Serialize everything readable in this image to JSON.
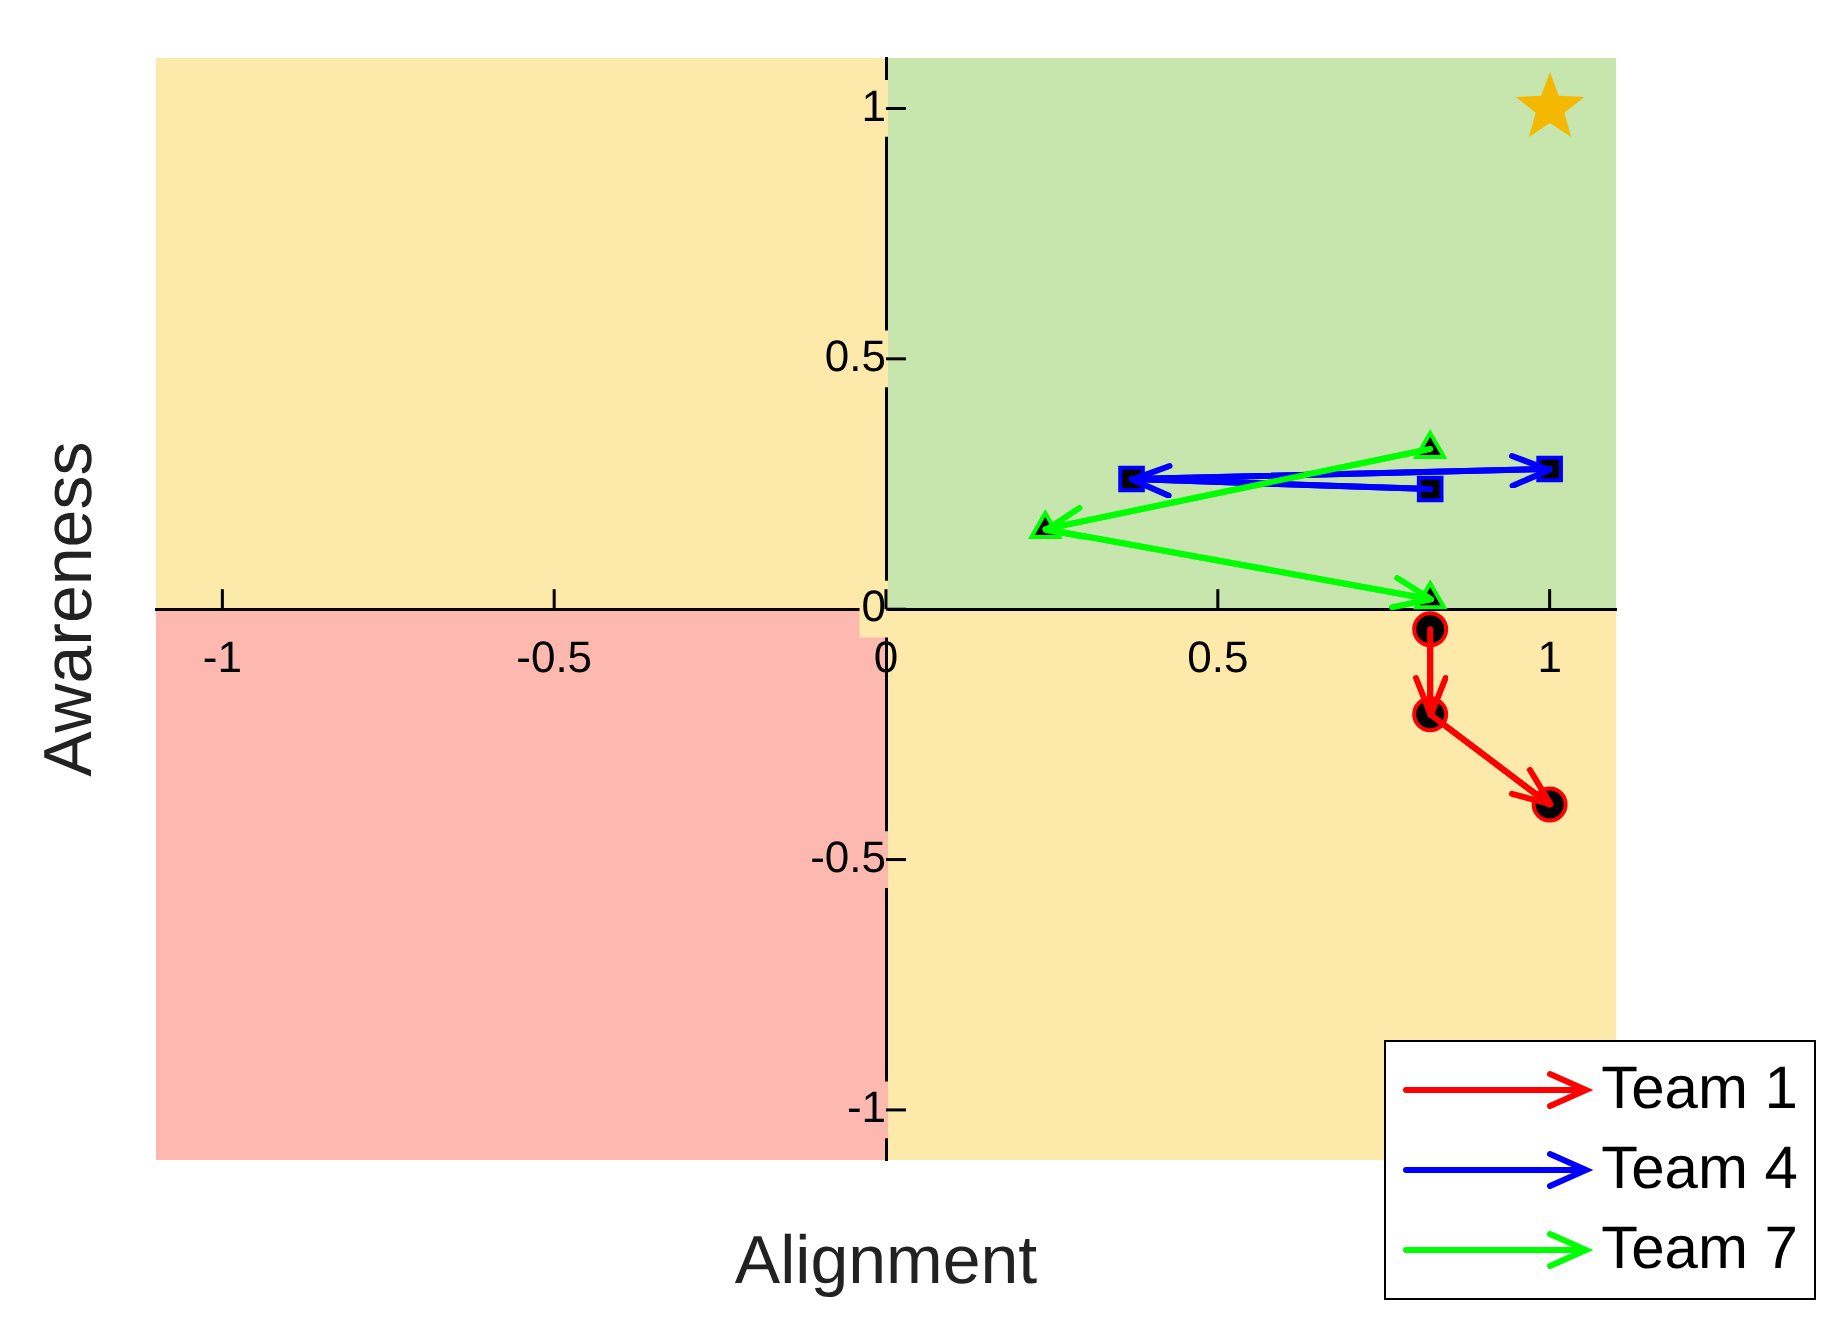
{
  "chart_data": {
    "type": "line",
    "xlabel": "Alignment",
    "ylabel": "Awareness",
    "xlim": [
      -1.1,
      1.1
    ],
    "ylim": [
      -1.1,
      1.1
    ],
    "xticks": [
      -1,
      -0.5,
      0,
      0.5,
      1
    ],
    "yticks": [
      -1,
      -0.5,
      0,
      0.5,
      1
    ],
    "grid": false,
    "legend": "bottom right",
    "series": [
      {
        "name": "Team 1",
        "color": "#ff0000",
        "marker": "circle",
        "x": [
          0.82,
          0.82,
          1.0
        ],
        "values": [
          -0.04,
          -0.21,
          -0.39
        ]
      },
      {
        "name": "Team 4",
        "color": "#0000ff",
        "marker": "square",
        "x": [
          0.82,
          0.37,
          1.0
        ],
        "values": [
          0.24,
          0.26,
          0.28
        ]
      },
      {
        "name": "Team 7",
        "color": "#00ff00",
        "marker": "triangle",
        "x": [
          0.82,
          0.24,
          0.82
        ],
        "values": [
          0.32,
          0.16,
          0.02
        ]
      }
    ]
  }
}
